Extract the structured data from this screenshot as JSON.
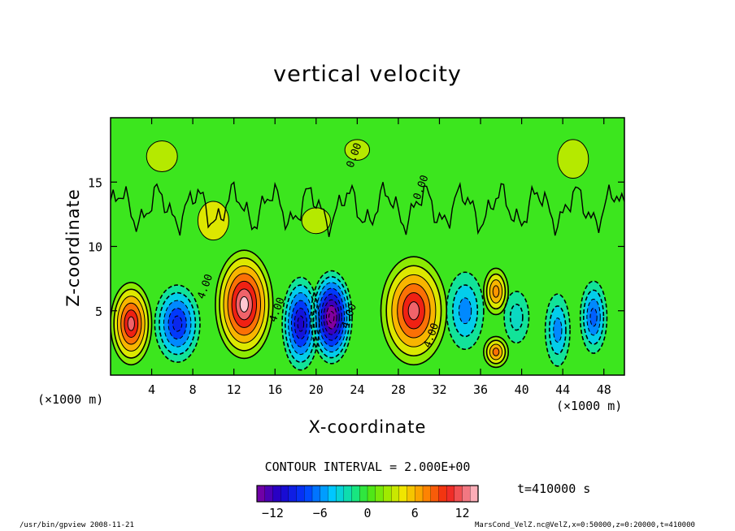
{
  "chart_data": {
    "type": "heatmap",
    "title": "vertical velocity",
    "xlabel": "X-coordinate",
    "ylabel": "Z-coordinate",
    "x_unit_label": "(×1000 m)",
    "xlim": [
      0,
      50
    ],
    "ylim": [
      0,
      20
    ],
    "x_ticks": [
      "4",
      "8",
      "12",
      "16",
      "20",
      "24",
      "28",
      "32",
      "36",
      "40",
      "44",
      "48"
    ],
    "y_ticks": [
      "5",
      "10",
      "15"
    ],
    "contour_interval_text": "CONTOUR INTERVAL = 2.000E+00",
    "contour_labels": [
      "0.00",
      "4.00",
      "-4.00"
    ],
    "colorbar": {
      "range": [
        -14,
        14
      ],
      "ticks": [
        "−12",
        "−6",
        "0",
        "6",
        "12"
      ]
    },
    "cells": [
      {
        "x": 2.0,
        "z": 4.0,
        "w": 12,
        "rx": 2.0,
        "rz": 3.2
      },
      {
        "x": 6.5,
        "z": 4.0,
        "w": -9,
        "rx": 2.2,
        "rz": 3.0
      },
      {
        "x": 13.0,
        "z": 5.5,
        "w": 14,
        "rx": 2.8,
        "rz": 4.2
      },
      {
        "x": 18.5,
        "z": 4.0,
        "w": -11,
        "rx": 1.8,
        "rz": 3.6
      },
      {
        "x": 21.5,
        "z": 4.5,
        "w": -15,
        "rx": 2.0,
        "rz": 3.6
      },
      {
        "x": 29.5,
        "z": 5.0,
        "w": 12,
        "rx": 3.2,
        "rz": 4.2
      },
      {
        "x": 34.5,
        "z": 5.0,
        "w": -6,
        "rx": 1.8,
        "rz": 3.0
      },
      {
        "x": 37.5,
        "z": 6.5,
        "w": 7,
        "rx": 1.2,
        "rz": 1.8
      },
      {
        "x": 37.5,
        "z": 1.8,
        "w": 8,
        "rx": 1.2,
        "rz": 1.2
      },
      {
        "x": 43.5,
        "z": 3.5,
        "w": -6,
        "rx": 1.2,
        "rz": 2.8
      },
      {
        "x": 47.0,
        "z": 4.5,
        "w": -7,
        "rx": 1.3,
        "rz": 2.8
      },
      {
        "x": 39.5,
        "z": 4.5,
        "w": -3,
        "rx": 1.2,
        "rz": 2.0
      }
    ]
  },
  "time_label": "t=410000 s",
  "footer": {
    "left": "/usr/bin/gpview   2008-11-21",
    "right": "MarsCond_VelZ.nc@VelZ,x=0:50000,z=0:20000,t=410000"
  }
}
